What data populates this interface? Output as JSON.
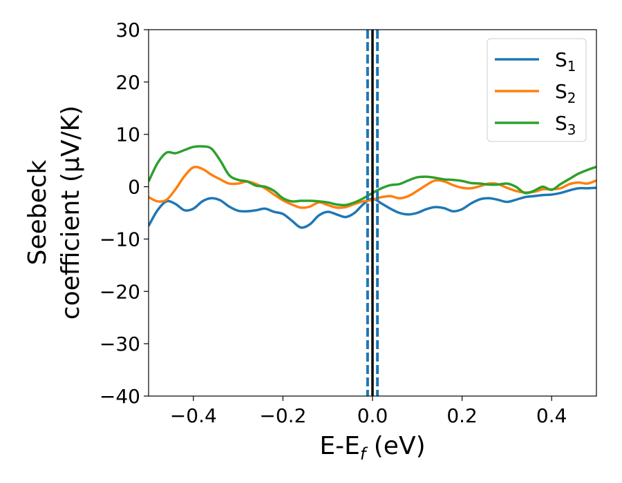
{
  "chart_data": {
    "type": "line",
    "xlabel": {
      "main": "E-E",
      "sub": "f",
      "rest": " (eV)"
    },
    "ylabel": {
      "line1": "Seebeck",
      "line2": "coefficient  (μV/K)"
    },
    "xlim": [
      -0.5,
      0.5
    ],
    "ylim": [
      -40,
      30
    ],
    "xticks": [
      -0.4,
      -0.2,
      0.0,
      0.2,
      0.4
    ],
    "xtick_labels": [
      "−0.4",
      "−0.2",
      "0.0",
      "0.2",
      "0.4"
    ],
    "yticks": [
      30,
      20,
      10,
      0,
      -10,
      -20,
      -30,
      -40
    ],
    "ytick_labels": [
      "30",
      "20",
      "10",
      "0",
      "−10",
      "−20",
      "−30",
      "−40"
    ],
    "grid": false,
    "legend_position": "top-right",
    "vlines": [
      {
        "x": -0.011,
        "style": "dashed",
        "color": "#1f77b4"
      },
      {
        "x": 0.011,
        "style": "dashed",
        "color": "#1f77b4"
      },
      {
        "x": 0.0,
        "style": "solid",
        "color": "#000000"
      }
    ],
    "series": [
      {
        "name": "S",
        "sub": "1",
        "color": "#1f77b4",
        "x": [
          -0.5,
          -0.48,
          -0.46,
          -0.44,
          -0.42,
          -0.4,
          -0.38,
          -0.36,
          -0.34,
          -0.32,
          -0.3,
          -0.28,
          -0.26,
          -0.24,
          -0.22,
          -0.2,
          -0.18,
          -0.16,
          -0.14,
          -0.12,
          -0.1,
          -0.08,
          -0.06,
          -0.04,
          -0.02,
          0.0,
          0.02,
          0.04,
          0.06,
          0.08,
          0.1,
          0.12,
          0.14,
          0.16,
          0.18,
          0.2,
          0.22,
          0.24,
          0.26,
          0.28,
          0.3,
          0.32,
          0.34,
          0.36,
          0.38,
          0.4,
          0.42,
          0.44,
          0.46,
          0.48,
          0.5
        ],
        "y": [
          -7.5,
          -4.5,
          -2.8,
          -3.3,
          -4.5,
          -4.2,
          -2.8,
          -2.2,
          -2.6,
          -3.8,
          -4.6,
          -4.7,
          -4.5,
          -4.2,
          -4.8,
          -5.2,
          -6.5,
          -7.8,
          -7.2,
          -5.5,
          -4.8,
          -5.3,
          -5.8,
          -5.0,
          -3.3,
          -2.3,
          -3.2,
          -4.2,
          -5.0,
          -5.3,
          -5.0,
          -4.3,
          -3.9,
          -4.1,
          -4.7,
          -4.3,
          -3.2,
          -2.4,
          -2.2,
          -2.5,
          -2.9,
          -2.5,
          -2.0,
          -1.8,
          -1.6,
          -1.5,
          -1.2,
          -0.7,
          -0.3,
          -0.3,
          -0.2
        ]
      },
      {
        "name": "S",
        "sub": "2",
        "color": "#ff7f0e",
        "x": [
          -0.5,
          -0.48,
          -0.46,
          -0.44,
          -0.42,
          -0.4,
          -0.38,
          -0.36,
          -0.34,
          -0.32,
          -0.3,
          -0.28,
          -0.26,
          -0.24,
          -0.22,
          -0.2,
          -0.18,
          -0.16,
          -0.14,
          -0.12,
          -0.1,
          -0.08,
          -0.06,
          -0.04,
          -0.02,
          0.0,
          0.02,
          0.04,
          0.06,
          0.08,
          0.1,
          0.12,
          0.14,
          0.16,
          0.18,
          0.2,
          0.22,
          0.24,
          0.26,
          0.28,
          0.3,
          0.32,
          0.34,
          0.36,
          0.38,
          0.4,
          0.42,
          0.44,
          0.46,
          0.48,
          0.5
        ],
        "y": [
          -2.0,
          -2.8,
          -2.5,
          -0.5,
          2.0,
          3.7,
          3.4,
          2.3,
          1.4,
          0.6,
          0.6,
          1.0,
          0.5,
          -0.3,
          -1.5,
          -2.6,
          -3.4,
          -4.0,
          -3.8,
          -3.0,
          -3.5,
          -4.0,
          -3.9,
          -3.3,
          -2.8,
          -2.5,
          -2.0,
          -1.8,
          -2.2,
          -1.8,
          -0.8,
          0.3,
          1.2,
          1.0,
          0.3,
          -0.2,
          -0.3,
          0.1,
          0.6,
          0.5,
          -0.2,
          -0.8,
          -1.1,
          -1.0,
          -0.5,
          -0.5,
          -0.3,
          0.5,
          0.8,
          0.6,
          1.2
        ]
      },
      {
        "name": "S",
        "sub": "3",
        "color": "#2ca02c",
        "x": [
          -0.5,
          -0.48,
          -0.46,
          -0.44,
          -0.42,
          -0.4,
          -0.38,
          -0.36,
          -0.34,
          -0.32,
          -0.3,
          -0.28,
          -0.26,
          -0.24,
          -0.22,
          -0.2,
          -0.18,
          -0.16,
          -0.14,
          -0.12,
          -0.1,
          -0.08,
          -0.06,
          -0.04,
          -0.02,
          0.0,
          0.02,
          0.04,
          0.06,
          0.08,
          0.1,
          0.12,
          0.14,
          0.16,
          0.18,
          0.2,
          0.22,
          0.24,
          0.26,
          0.28,
          0.3,
          0.32,
          0.34,
          0.36,
          0.38,
          0.4,
          0.42,
          0.44,
          0.46,
          0.48,
          0.5
        ],
        "y": [
          1.0,
          4.5,
          6.5,
          6.4,
          7.0,
          7.6,
          7.7,
          7.3,
          5.0,
          2.2,
          1.3,
          1.0,
          0.2,
          0.0,
          -0.8,
          -2.2,
          -2.8,
          -2.7,
          -2.7,
          -2.8,
          -3.0,
          -3.4,
          -3.5,
          -3.0,
          -2.2,
          -1.2,
          -0.3,
          0.3,
          0.5,
          1.2,
          1.8,
          1.9,
          1.7,
          1.4,
          1.3,
          1.1,
          0.7,
          0.6,
          0.4,
          0.4,
          0.6,
          0.0,
          -1.2,
          -0.8,
          0.0,
          -0.6,
          0.5,
          1.5,
          2.5,
          3.2,
          3.8
        ]
      }
    ]
  }
}
